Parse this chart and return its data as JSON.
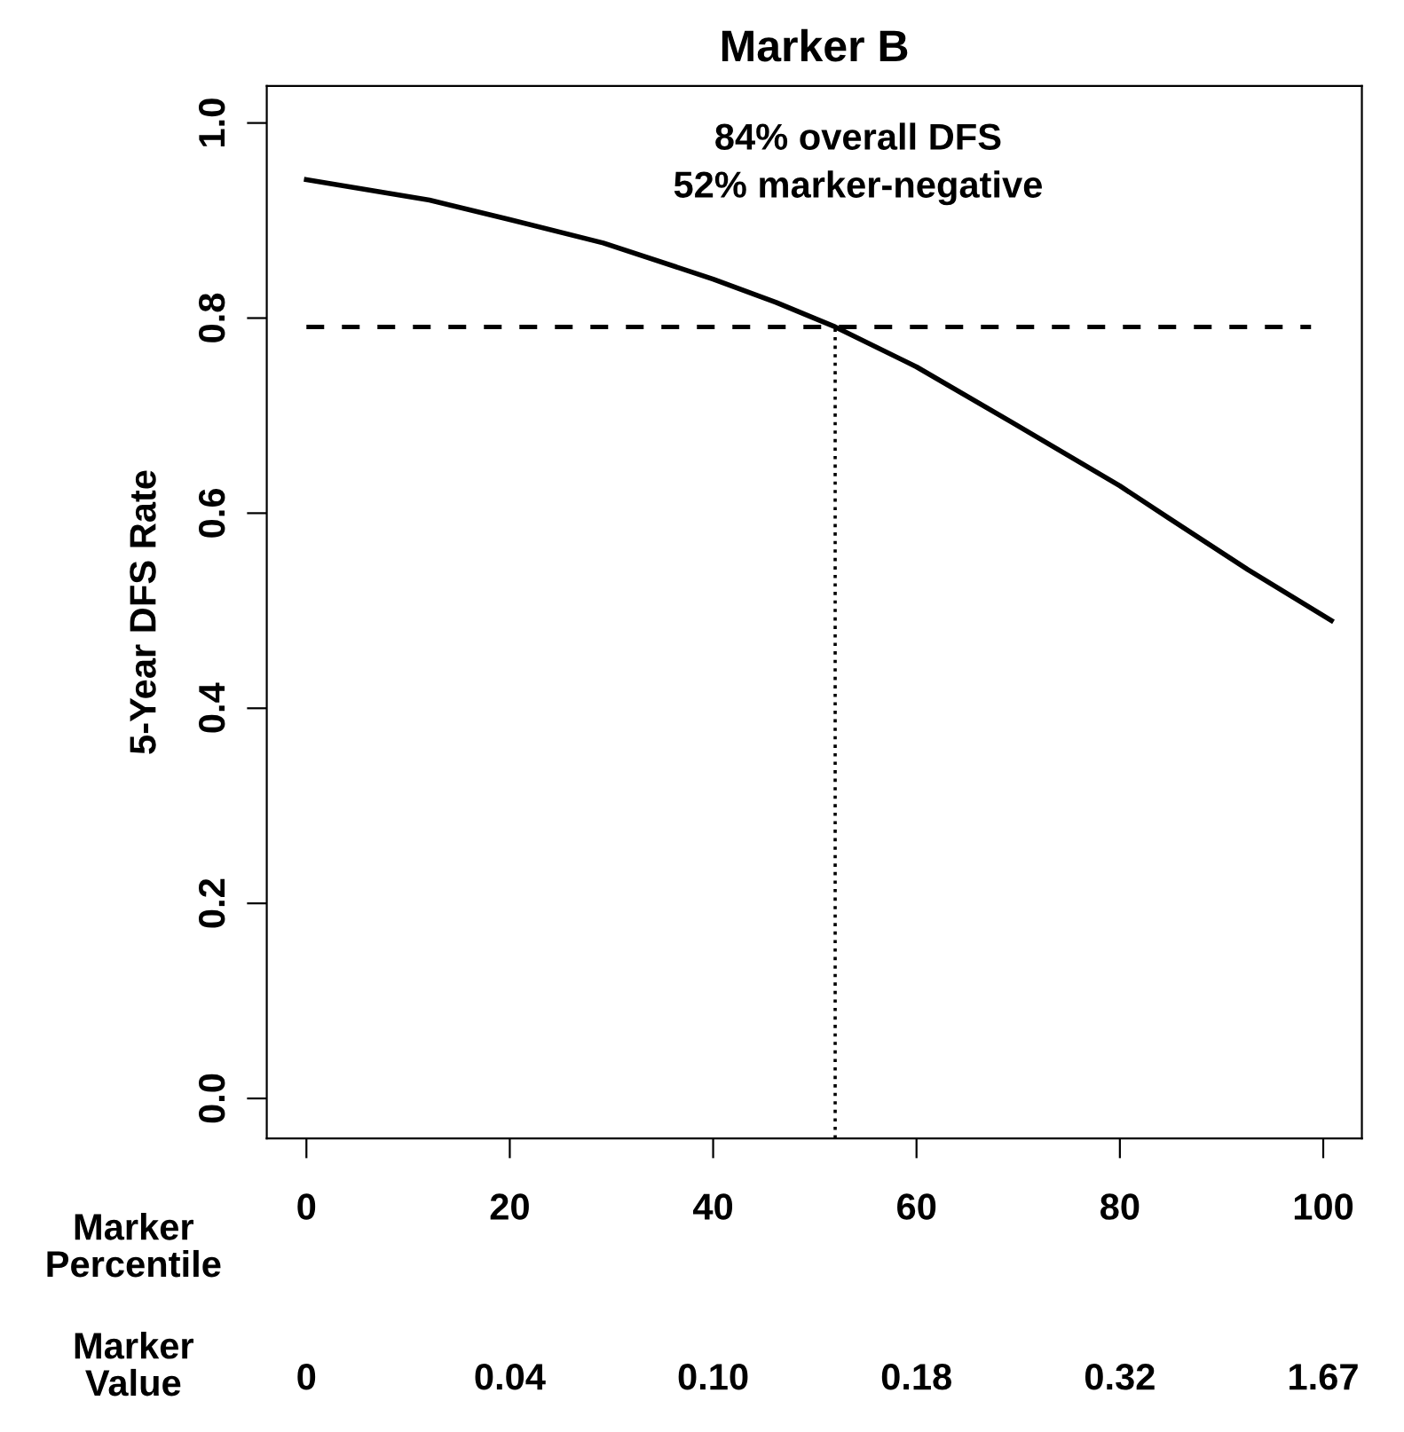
{
  "chart_data": {
    "type": "line",
    "title": "Marker B",
    "ylabel": "5-Year DFS Rate",
    "xlabel": "Marker\nPercentile",
    "annotations": [
      "84% overall DFS\n52% marker-negative",
      "Marker\nValue",
      "0",
      "0.04",
      "0.10",
      "0.18",
      "0.32",
      "1.67"
    ],
    "series": [
      {
        "color": "#000000",
        "x": [
          0,
          12.1,
          20,
          29.2,
          40,
          46.2,
          52,
          60,
          69.4,
          80,
          84.8,
          92.6,
          100.8
        ],
        "values": [
          0.942,
          0.921,
          0.901,
          0.877,
          0.84,
          0.816,
          0.791,
          0.75,
          0.693,
          0.628,
          0.595,
          0.542,
          0.49
        ]
      }
    ],
    "xlim": [
      -3.9,
      103.8
    ],
    "ylim": [
      -0.041,
      1.038
    ],
    "xticks": [
      0,
      20,
      40,
      60,
      80,
      100
    ],
    "yticks": [
      {
        "value": 0,
        "label": "0.0"
      },
      0.2,
      0.4,
      0.6,
      0.8,
      {
        "value": 1,
        "label": "1.0"
      }
    ],
    "ref_lines": [
      {
        "axis": "y",
        "value": 0.791,
        "line_style": "dashed",
        "color": "#000000"
      },
      {
        "axis": "x",
        "value": 52,
        "line_style": "dotted",
        "color": "#000000"
      }
    ],
    "grid": false,
    "legend": false,
    "marker": "none",
    "line_style": "solid"
  }
}
